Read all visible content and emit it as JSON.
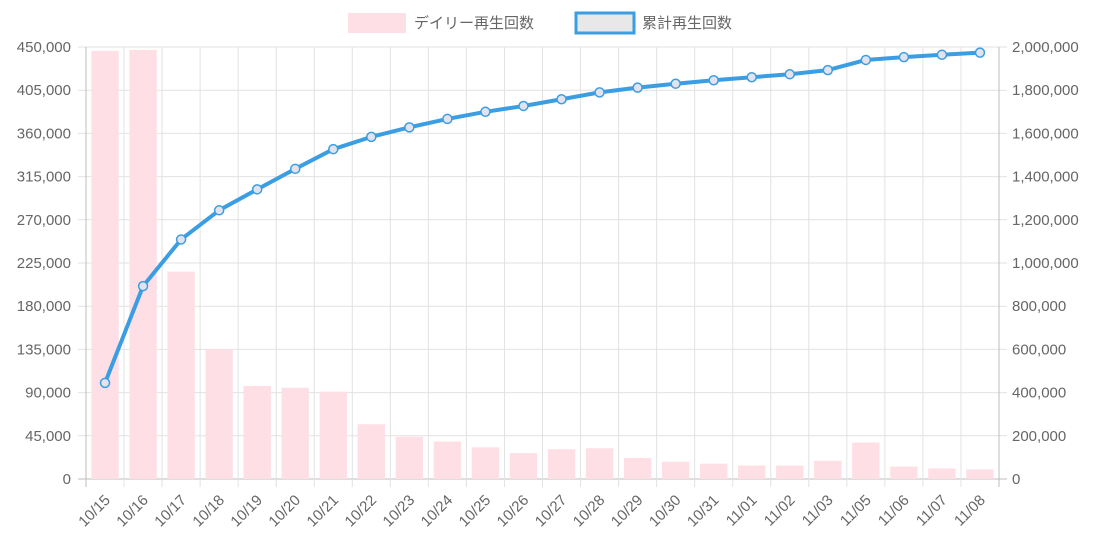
{
  "chart_data": {
    "type": "bar",
    "categories": [
      "10/15",
      "10/16",
      "10/17",
      "10/18",
      "10/19",
      "10/20",
      "10/21",
      "10/22",
      "10/23",
      "10/24",
      "10/25",
      "10/26",
      "10/27",
      "10/28",
      "10/29",
      "10/30",
      "10/31",
      "11/01",
      "11/02",
      "11/03",
      "11/05",
      "11/06",
      "11/07",
      "11/08"
    ],
    "series": [
      {
        "name": "デイリー再生回数",
        "chart_type": "bar",
        "axis": "left",
        "color": "#ffdfe6",
        "values": [
          446000,
          447000,
          216000,
          135000,
          97000,
          95000,
          91000,
          57000,
          44000,
          39000,
          33000,
          27000,
          31000,
          32000,
          22000,
          18000,
          16000,
          14000,
          14000,
          19000,
          38000,
          13000,
          11000,
          10000
        ]
      },
      {
        "name": "累計再生回数",
        "chart_type": "line",
        "axis": "right",
        "color": "#3b9ee2",
        "values": [
          445000,
          893000,
          1109000,
          1244000,
          1341000,
          1436000,
          1527000,
          1584000,
          1628000,
          1667000,
          1700000,
          1727000,
          1758000,
          1790000,
          1812000,
          1830000,
          1846000,
          1860000,
          1874000,
          1893000,
          1940000,
          1953000,
          1964000,
          1974000
        ]
      }
    ],
    "y_left": {
      "min": 0,
      "max": 450000,
      "step": 45000,
      "ticks": [
        "0",
        "45,000",
        "90,000",
        "135,000",
        "180,000",
        "225,000",
        "270,000",
        "315,000",
        "360,000",
        "405,000",
        "450,000"
      ]
    },
    "y_right": {
      "min": 0,
      "max": 2000000,
      "step": 200000,
      "ticks": [
        "0",
        "200,000",
        "400,000",
        "600,000",
        "800,000",
        "1,000,000",
        "1,200,000",
        "1,400,000",
        "1,600,000",
        "1,800,000",
        "2,000,000"
      ]
    },
    "grid": true,
    "legend": "top-center",
    "title": "",
    "xlabel": "",
    "ylabel": ""
  }
}
